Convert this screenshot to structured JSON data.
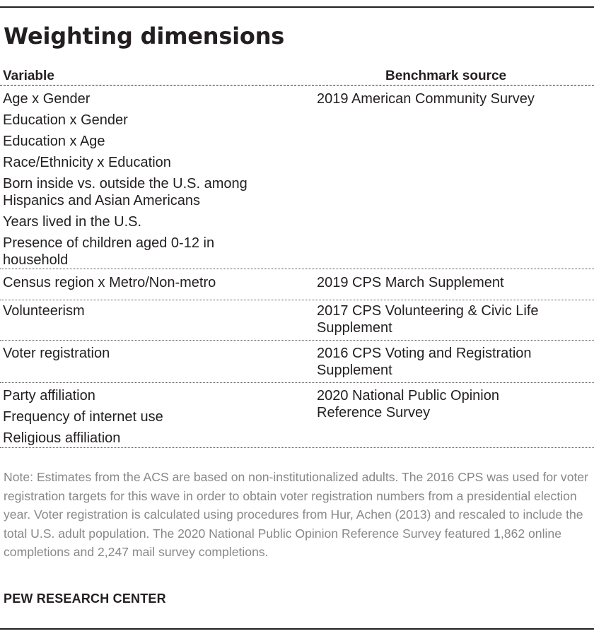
{
  "title": "Weighting dimensions",
  "columns": {
    "variable": "Variable",
    "source": "Benchmark source"
  },
  "groups": [
    {
      "variables": [
        "Age x Gender",
        "Education x Gender",
        "Education x Age",
        "Race/Ethnicity x Education",
        "Born inside vs. outside the U.S. among Hispanics and Asian Americans",
        "Years lived in the U.S.",
        "Presence of children aged 0-12 in household"
      ],
      "source": "2019 American Community Survey"
    },
    {
      "variables": [
        "Census region x Metro/Non-metro"
      ],
      "source": "2019 CPS March Supplement"
    },
    {
      "variables": [
        "Volunteerism"
      ],
      "source": "2017 CPS Volunteering & Civic Life Supplement"
    },
    {
      "variables": [
        "Voter registration"
      ],
      "source": "2016 CPS Voting and Registration Supplement"
    },
    {
      "variables": [
        "Party affiliation",
        "Frequency of internet use",
        "Religious affiliation"
      ],
      "source": "2020 National Public Opinion Reference Survey"
    }
  ],
  "note": "Note: Estimates from the ACS are based on non-institutionalized adults. The 2016 CPS was used for voter registration targets for this wave in order to obtain voter registration numbers from a presidential election year. Voter registration is calculated using procedures from Hur, Achen (2013) and rescaled to include the total U.S. adult population. The 2020 National Public Opinion Reference Survey featured 1,862 online completions and 2,247 mail survey completions.",
  "source_label": "PEW RESEARCH CENTER"
}
